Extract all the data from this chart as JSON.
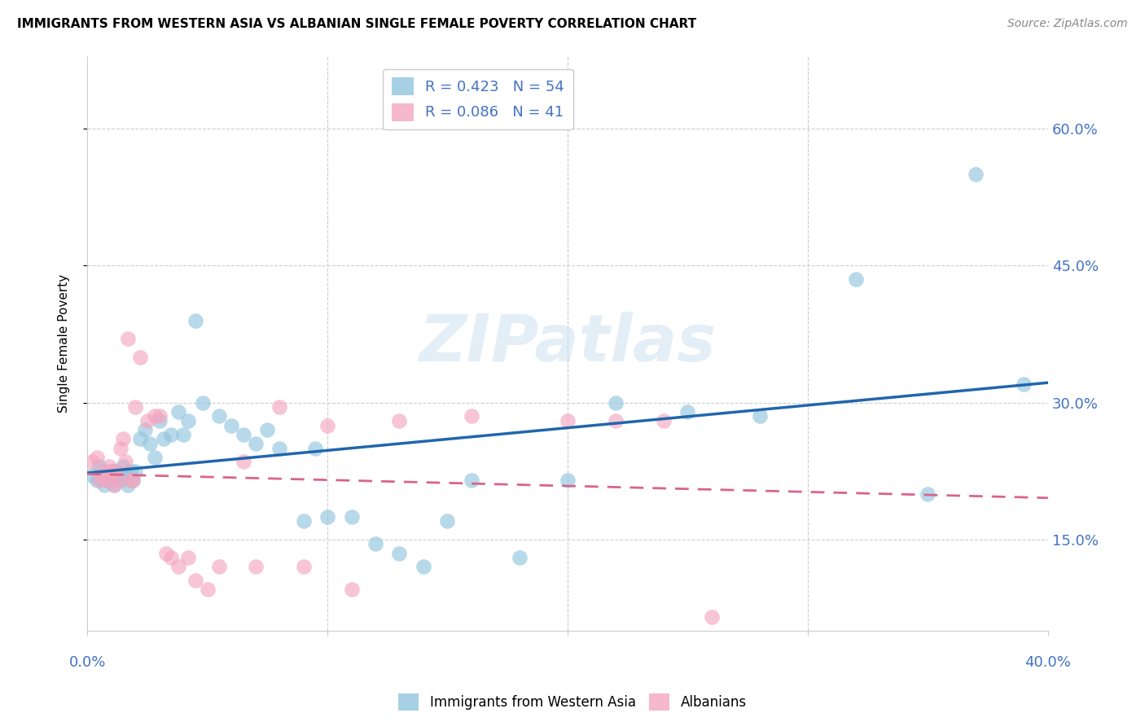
{
  "title": "IMMIGRANTS FROM WESTERN ASIA VS ALBANIAN SINGLE FEMALE POVERTY CORRELATION CHART",
  "source": "Source: ZipAtlas.com",
  "ylabel": "Single Female Poverty",
  "y_ticks": [
    0.15,
    0.3,
    0.45,
    0.6
  ],
  "y_tick_labels": [
    "15.0%",
    "30.0%",
    "45.0%",
    "60.0%"
  ],
  "xlim": [
    0.0,
    0.4
  ],
  "ylim": [
    0.05,
    0.68
  ],
  "legend_r1": "R = 0.423",
  "legend_n1": "N = 54",
  "legend_r2": "R = 0.086",
  "legend_n2": "N = 41",
  "blue_color": "#92c5de",
  "pink_color": "#f4a6c0",
  "line_blue": "#2166ac",
  "line_pink": "#d9648a",
  "watermark_color": "#c8dff0",
  "blue_scatter_x": [
    0.002,
    0.004,
    0.005,
    0.006,
    0.007,
    0.008,
    0.009,
    0.01,
    0.011,
    0.012,
    0.013,
    0.014,
    0.015,
    0.016,
    0.017,
    0.018,
    0.019,
    0.02,
    0.022,
    0.024,
    0.026,
    0.028,
    0.03,
    0.032,
    0.035,
    0.038,
    0.04,
    0.042,
    0.045,
    0.048,
    0.055,
    0.06,
    0.065,
    0.07,
    0.075,
    0.08,
    0.09,
    0.095,
    0.1,
    0.11,
    0.12,
    0.13,
    0.14,
    0.15,
    0.16,
    0.18,
    0.2,
    0.22,
    0.25,
    0.28,
    0.32,
    0.35,
    0.37,
    0.39
  ],
  "blue_scatter_y": [
    0.22,
    0.215,
    0.23,
    0.225,
    0.21,
    0.22,
    0.215,
    0.225,
    0.21,
    0.225,
    0.22,
    0.215,
    0.23,
    0.22,
    0.21,
    0.225,
    0.215,
    0.225,
    0.26,
    0.27,
    0.255,
    0.24,
    0.28,
    0.26,
    0.265,
    0.29,
    0.265,
    0.28,
    0.39,
    0.3,
    0.285,
    0.275,
    0.265,
    0.255,
    0.27,
    0.25,
    0.17,
    0.25,
    0.175,
    0.175,
    0.145,
    0.135,
    0.12,
    0.17,
    0.215,
    0.13,
    0.215,
    0.3,
    0.29,
    0.285,
    0.435,
    0.2,
    0.55,
    0.32
  ],
  "pink_scatter_x": [
    0.002,
    0.004,
    0.005,
    0.006,
    0.007,
    0.008,
    0.009,
    0.01,
    0.011,
    0.012,
    0.013,
    0.014,
    0.015,
    0.016,
    0.017,
    0.018,
    0.019,
    0.02,
    0.022,
    0.025,
    0.028,
    0.03,
    0.033,
    0.035,
    0.038,
    0.042,
    0.045,
    0.05,
    0.055,
    0.065,
    0.07,
    0.08,
    0.09,
    0.1,
    0.11,
    0.13,
    0.16,
    0.2,
    0.22,
    0.24,
    0.26
  ],
  "pink_scatter_y": [
    0.235,
    0.24,
    0.215,
    0.22,
    0.225,
    0.215,
    0.23,
    0.225,
    0.21,
    0.225,
    0.215,
    0.25,
    0.26,
    0.235,
    0.37,
    0.215,
    0.215,
    0.295,
    0.35,
    0.28,
    0.285,
    0.285,
    0.135,
    0.13,
    0.12,
    0.13,
    0.105,
    0.095,
    0.12,
    0.235,
    0.12,
    0.295,
    0.12,
    0.275,
    0.095,
    0.28,
    0.285,
    0.28,
    0.28,
    0.28,
    0.065
  ]
}
